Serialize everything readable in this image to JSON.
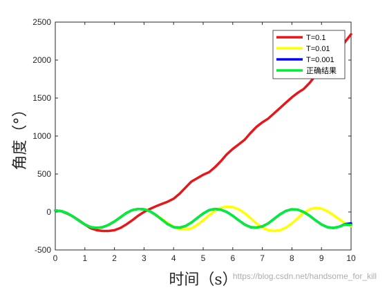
{
  "chart_data": {
    "type": "line",
    "xlabel": "时间（s）",
    "ylabel": "角度（°）",
    "xlim": [
      0,
      10
    ],
    "ylim": [
      -500,
      2500
    ],
    "xticks": [
      "0",
      "1",
      "2",
      "3",
      "4",
      "5",
      "6",
      "7",
      "8",
      "9",
      "10"
    ],
    "yticks": [
      "-500",
      "0",
      "500",
      "1000",
      "1500",
      "2000",
      "2500"
    ],
    "legend_position": "top-right",
    "series": [
      {
        "name": "T=0.1",
        "color": "#e8151b",
        "x": [
          0,
          0.2,
          0.4,
          0.6,
          0.8,
          1.0,
          1.2,
          1.4,
          1.6,
          1.8,
          2.0,
          2.2,
          2.4,
          2.6,
          2.8,
          3.0,
          3.2,
          3.4,
          3.6,
          3.8,
          4.0,
          4.2,
          4.4,
          4.6,
          4.8,
          5.0,
          5.2,
          5.4,
          5.6,
          5.8,
          6.0,
          6.2,
          6.4,
          6.6,
          6.8,
          7.0,
          7.2,
          7.4,
          7.6,
          7.8,
          8.0,
          8.2,
          8.4,
          8.6,
          8.8,
          9.0,
          9.2,
          9.4,
          9.6,
          9.8,
          10.0
        ],
        "y": [
          20,
          10,
          -20,
          -60,
          -110,
          -165,
          -215,
          -240,
          -250,
          -250,
          -240,
          -210,
          -165,
          -110,
          -50,
          0,
          40,
          75,
          105,
          135,
          175,
          240,
          320,
          400,
          445,
          490,
          525,
          590,
          670,
          760,
          830,
          890,
          950,
          1040,
          1120,
          1180,
          1230,
          1300,
          1370,
          1440,
          1510,
          1570,
          1620,
          1700,
          1800,
          1890,
          1970,
          2060,
          2140,
          2240,
          2340
        ]
      },
      {
        "name": "T=0.01",
        "color": "#ffff00",
        "x": [
          0,
          0.2,
          0.4,
          0.6,
          0.8,
          1.0,
          1.2,
          1.4,
          1.6,
          1.8,
          2.0,
          2.2,
          2.4,
          2.6,
          2.8,
          3.0,
          3.2,
          3.4,
          3.6,
          3.8,
          4.0,
          4.2,
          4.4,
          4.6,
          4.8,
          5.0,
          5.2,
          5.4,
          5.6,
          5.8,
          6.0,
          6.2,
          6.4,
          6.6,
          6.8,
          7.0,
          7.2,
          7.4,
          7.6,
          7.8,
          8.0,
          8.2,
          8.4,
          8.6,
          8.8,
          9.0,
          9.2,
          9.4,
          9.6,
          9.8,
          10.0
        ],
        "y": [
          20,
          12,
          -15,
          -60,
          -115,
          -165,
          -200,
          -210,
          -200,
          -170,
          -125,
          -70,
          -15,
          25,
          40,
          35,
          10,
          -35,
          -90,
          -145,
          -195,
          -225,
          -230,
          -215,
          -170,
          -110,
          -45,
          15,
          55,
          70,
          65,
          35,
          -15,
          -80,
          -150,
          -205,
          -240,
          -250,
          -240,
          -205,
          -150,
          -80,
          -10,
          35,
          55,
          45,
          10,
          -40,
          -95,
          -150,
          -185
        ]
      },
      {
        "name": "T=0.001",
        "color": "#0000ff",
        "x": [
          0,
          0.2,
          0.4,
          0.6,
          0.8,
          1.0,
          1.2,
          1.4,
          1.6,
          1.8,
          2.0,
          2.2,
          2.4,
          2.6,
          2.8,
          3.0,
          3.2,
          3.4,
          3.6,
          3.8,
          4.0,
          4.2,
          4.4,
          4.6,
          4.8,
          5.0,
          5.2,
          5.4,
          5.6,
          5.8,
          6.0,
          6.2,
          6.4,
          6.6,
          6.8,
          7.0,
          7.2,
          7.4,
          7.6,
          7.8,
          8.0,
          8.2,
          8.4,
          8.6,
          8.8,
          9.0,
          9.2,
          9.4,
          9.6,
          9.8,
          10.0
        ],
        "y": [
          20,
          12,
          -15,
          -60,
          -115,
          -165,
          -200,
          -210,
          -200,
          -170,
          -125,
          -70,
          -15,
          25,
          40,
          35,
          10,
          -40,
          -100,
          -160,
          -200,
          -205,
          -185,
          -140,
          -80,
          -20,
          25,
          40,
          30,
          0,
          -50,
          -110,
          -165,
          -200,
          -205,
          -190,
          -150,
          -90,
          -30,
          15,
          35,
          30,
          0,
          -50,
          -110,
          -165,
          -200,
          -210,
          -195,
          -160,
          -150
        ]
      },
      {
        "name": "正确结果",
        "color": "#00ee33",
        "x": [
          0,
          0.2,
          0.4,
          0.6,
          0.8,
          1.0,
          1.2,
          1.4,
          1.6,
          1.8,
          2.0,
          2.2,
          2.4,
          2.6,
          2.8,
          3.0,
          3.2,
          3.4,
          3.6,
          3.8,
          4.0,
          4.2,
          4.4,
          4.6,
          4.8,
          5.0,
          5.2,
          5.4,
          5.6,
          5.8,
          6.0,
          6.2,
          6.4,
          6.6,
          6.8,
          7.0,
          7.2,
          7.4,
          7.6,
          7.8,
          8.0,
          8.2,
          8.4,
          8.6,
          8.8,
          9.0,
          9.2,
          9.4,
          9.6,
          9.8,
          10.0
        ],
        "y": [
          20,
          12,
          -15,
          -60,
          -115,
          -165,
          -200,
          -210,
          -200,
          -170,
          -125,
          -70,
          -15,
          25,
          40,
          35,
          10,
          -40,
          -100,
          -160,
          -200,
          -205,
          -185,
          -140,
          -80,
          -20,
          25,
          40,
          30,
          0,
          -50,
          -110,
          -165,
          -200,
          -205,
          -190,
          -150,
          -90,
          -30,
          15,
          35,
          30,
          0,
          -50,
          -110,
          -165,
          -200,
          -210,
          -195,
          -165,
          -170
        ]
      }
    ]
  },
  "watermark": "https://blog.csdn.net/handsome_for_kill"
}
